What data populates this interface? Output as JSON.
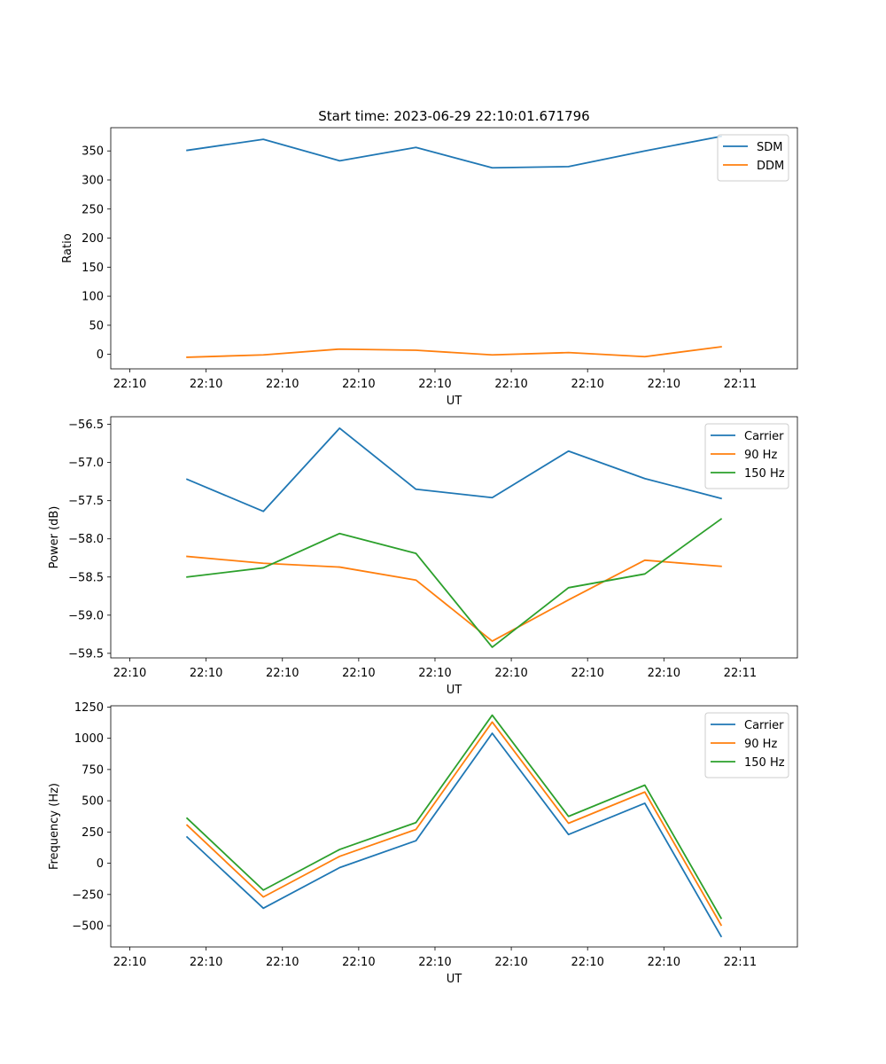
{
  "figure": {
    "title": "Start time: 2023-06-29 22:10:01.671796"
  },
  "chart_data": [
    {
      "type": "line",
      "title": "Start time: 2023-06-29 22:10:01.671796",
      "xlabel": "UT",
      "ylabel": "Ratio",
      "xlim": [
        0,
        9
      ],
      "ylim": [
        -25,
        390
      ],
      "x_ticks": [
        0.25,
        1.25,
        2.25,
        3.25,
        4.25,
        5.25,
        6.25,
        7.25,
        8.25
      ],
      "x_tick_labels": [
        "22:10",
        "22:10",
        "22:10",
        "22:10",
        "22:10",
        "22:10",
        "22:10",
        "22:10",
        "22:11"
      ],
      "y_ticks": [
        0,
        50,
        100,
        150,
        200,
        250,
        300,
        350
      ],
      "x": [
        1,
        2,
        3,
        4,
        5,
        6,
        7,
        8
      ],
      "grid": false,
      "legend_placement": "upper right",
      "series": [
        {
          "name": "SDM",
          "color": "#1f77b4",
          "values": [
            351,
            370,
            333,
            356,
            321,
            323,
            350,
            375
          ]
        },
        {
          "name": "DDM",
          "color": "#ff7f0e",
          "values": [
            -5,
            -1,
            9,
            7,
            -1,
            3,
            -4,
            13
          ]
        }
      ]
    },
    {
      "type": "line",
      "title": "",
      "xlabel": "UT",
      "ylabel": "Power (dB)",
      "xlim": [
        0,
        9
      ],
      "ylim": [
        -59.56,
        -56.4
      ],
      "x_ticks": [
        0.25,
        1.25,
        2.25,
        3.25,
        4.25,
        5.25,
        6.25,
        7.25,
        8.25
      ],
      "x_tick_labels": [
        "22:10",
        "22:10",
        "22:10",
        "22:10",
        "22:10",
        "22:10",
        "22:10",
        "22:10",
        "22:11"
      ],
      "y_ticks": [
        -59.5,
        -59.0,
        -58.5,
        -58.0,
        -57.5,
        -57.0,
        -56.5
      ],
      "y_tick_labels": [
        "−59.5",
        "−59.0",
        "−58.5",
        "−58.0",
        "−57.5",
        "−57.0",
        "−56.5"
      ],
      "x": [
        1,
        2,
        3,
        4,
        5,
        6,
        7,
        8
      ],
      "grid": false,
      "legend_placement": "upper right",
      "series": [
        {
          "name": "Carrier",
          "color": "#1f77b4",
          "values": [
            -57.22,
            -57.64,
            -56.55,
            -57.35,
            -57.46,
            -56.85,
            -57.21,
            -57.47
          ]
        },
        {
          "name": "90 Hz",
          "color": "#ff7f0e",
          "values": [
            -58.23,
            -58.32,
            -58.37,
            -58.54,
            -59.34,
            -58.8,
            -58.28,
            -58.36
          ]
        },
        {
          "name": "150 Hz",
          "color": "#2ca02c",
          "values": [
            -58.5,
            -58.38,
            -57.93,
            -58.19,
            -59.42,
            -58.64,
            -58.46,
            -57.74
          ]
        }
      ]
    },
    {
      "type": "line",
      "title": "",
      "xlabel": "UT",
      "ylabel": "Frequency (Hz)",
      "xlim": [
        0,
        9
      ],
      "ylim": [
        -670,
        1260
      ],
      "x_ticks": [
        0.25,
        1.25,
        2.25,
        3.25,
        4.25,
        5.25,
        6.25,
        7.25,
        8.25
      ],
      "x_tick_labels": [
        "22:10",
        "22:10",
        "22:10",
        "22:10",
        "22:10",
        "22:10",
        "22:10",
        "22:10",
        "22:11"
      ],
      "y_ticks": [
        -500,
        -250,
        0,
        250,
        500,
        750,
        1000,
        1250
      ],
      "y_tick_labels": [
        "−500",
        "−250",
        "0",
        "250",
        "500",
        "750",
        "1000",
        "1250"
      ],
      "x": [
        1,
        2,
        3,
        4,
        5,
        6,
        7,
        8
      ],
      "grid": false,
      "legend_placement": "upper right",
      "series": [
        {
          "name": "Carrier",
          "color": "#1f77b4",
          "values": [
            210,
            -360,
            -35,
            180,
            1040,
            230,
            480,
            -585
          ]
        },
        {
          "name": "90 Hz",
          "color": "#ff7f0e",
          "values": [
            305,
            -270,
            55,
            270,
            1130,
            320,
            570,
            -495
          ]
        },
        {
          "name": "150 Hz",
          "color": "#2ca02c",
          "values": [
            360,
            -215,
            110,
            325,
            1185,
            375,
            625,
            -440
          ]
        }
      ]
    }
  ]
}
